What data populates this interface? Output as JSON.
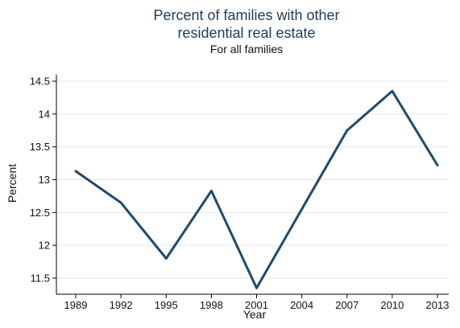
{
  "colors": {
    "series_line": "#1f4a6e",
    "gridline": "#e6e6e6",
    "axis": "#000000",
    "title": "#1f3b5a",
    "background": "#ffffff"
  },
  "chart_data": {
    "type": "line",
    "title_lines": [
      "Percent of families with other",
      "residential real estate"
    ],
    "subtitle": "For all families",
    "xlabel": "Year",
    "ylabel": "Percent",
    "x": [
      "1989",
      "1992",
      "1995",
      "1998",
      "2001",
      "2004",
      "2007",
      "2010",
      "2013"
    ],
    "values": [
      13.13,
      12.65,
      11.8,
      12.83,
      11.35,
      12.55,
      13.75,
      14.35,
      13.22
    ],
    "yticks": [
      "11.5",
      "12",
      "12.5",
      "13",
      "13.5",
      "14",
      "14.5"
    ],
    "ylim": [
      11.3,
      14.6
    ],
    "grid": true,
    "legend": "none"
  }
}
